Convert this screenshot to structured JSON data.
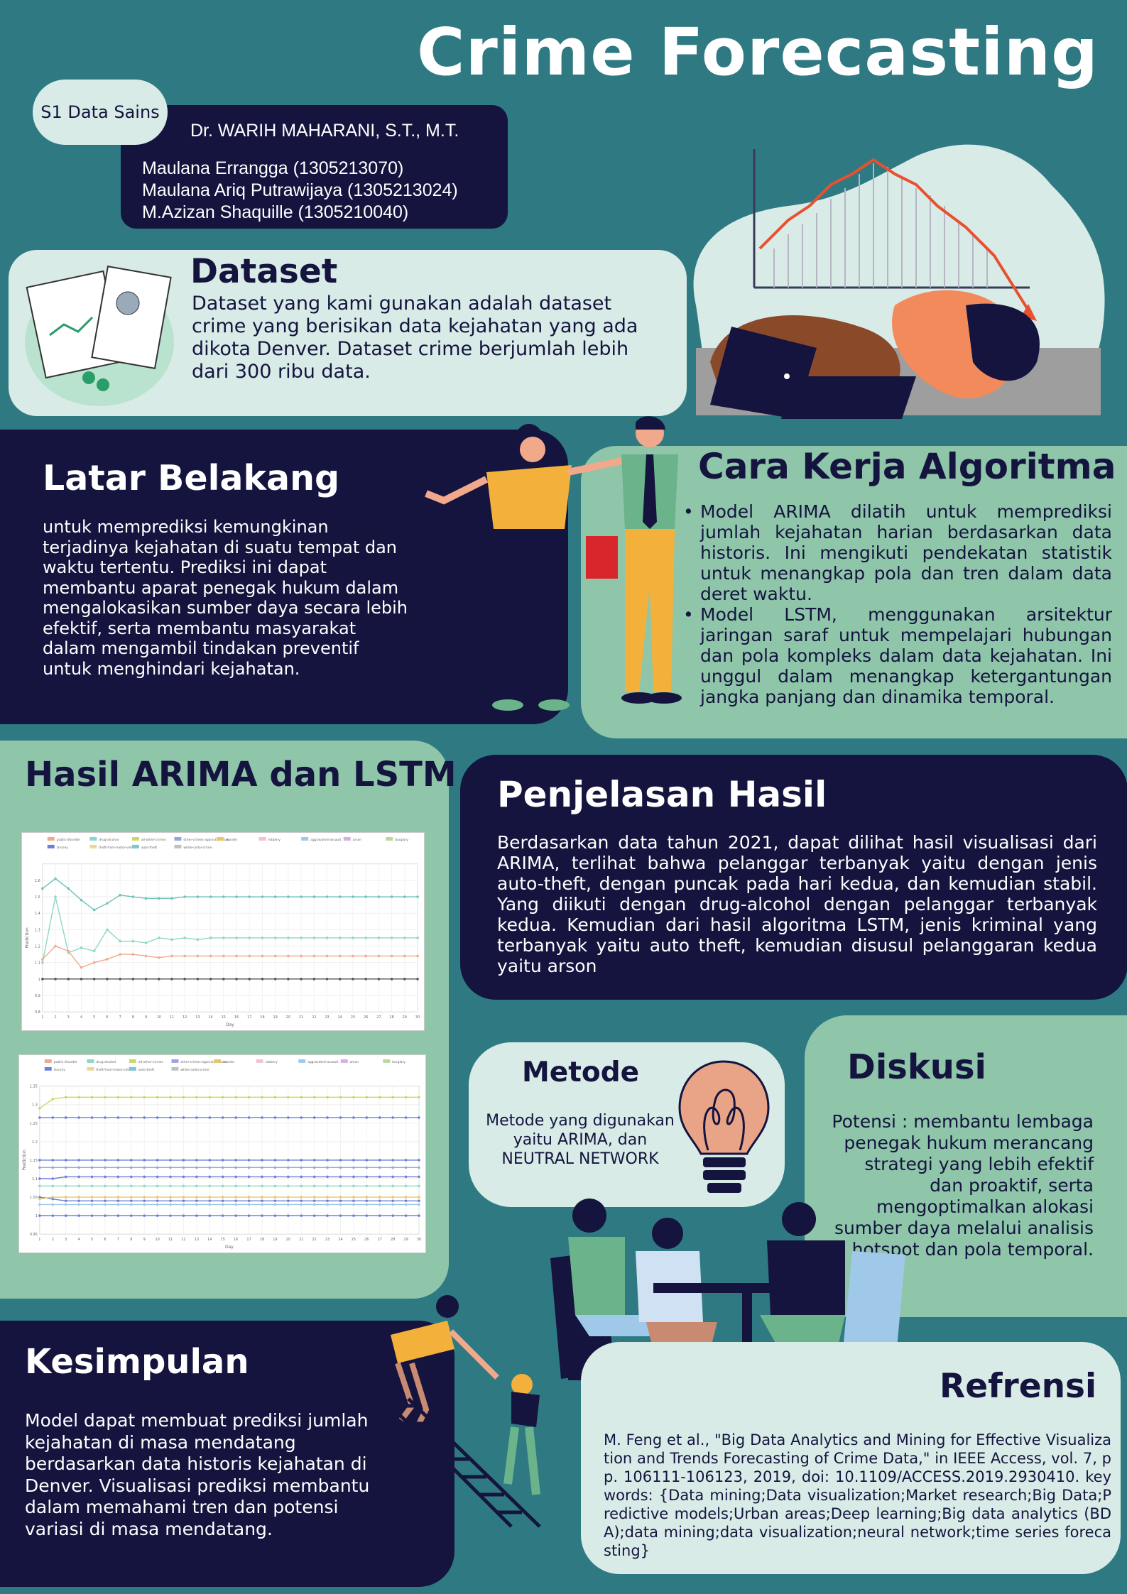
{
  "header": {
    "title": "Crime Forecasting",
    "program": "S1 Data Sains",
    "supervisor": "Dr. WARIH MAHARANI, S.T., M.T.",
    "members": [
      "Maulana Errangga (1305213070)",
      "Maulana Ariq Putrawijaya (1305213024)",
      "M.Azizan Shaquille (1305210040)"
    ]
  },
  "dataset": {
    "heading": "Dataset",
    "text": "Dataset yang kami gunakan adalah dataset crime yang berisikan data kejahatan yang ada dikota Denver. Dataset crime berjumlah lebih dari 300 ribu data."
  },
  "latar": {
    "heading": "Latar Belakang",
    "text": "untuk memprediksi kemungkinan terjadinya kejahatan di suatu tempat dan waktu tertentu. Prediksi ini dapat membantu aparat penegak hukum dalam mengalokasikan sumber daya secara lebih efektif, serta membantu masyarakat dalam mengambil tindakan preventif untuk menghindari kejahatan."
  },
  "cara": {
    "heading": "Cara Kerja Algoritma",
    "items": [
      "Model ARIMA dilatih untuk memprediksi jumlah kejahatan harian berdasarkan data historis. Ini mengikuti pendekatan statistik untuk menangkap pola dan tren dalam data deret waktu.",
      "Model LSTM, menggunakan arsitektur jaringan saraf untuk mempelajari hubungan dan pola kompleks dalam data kejahatan. Ini unggul dalam menangkap ketergantungan jangka panjang dan dinamika temporal."
    ]
  },
  "hasil": {
    "heading": "Hasil ARIMA dan LSTM"
  },
  "penjelasan": {
    "heading": "Penjelasan Hasil",
    "text": "Berdasarkan data tahun 2021, dapat dilihat hasil visualisasi dari ARIMA, terlihat bahwa pelanggar terbanyak yaitu dengan jenis auto-theft, dengan puncak pada hari kedua, dan kemudian stabil. Yang diikuti dengan drug-alcohol dengan pelanggar terbanyak kedua. Kemudian dari hasil algoritma LSTM, jenis kriminal yang terbanyak yaitu auto theft, kemudian disusul pelanggaran kedua yaitu arson"
  },
  "metode": {
    "heading": "Metode",
    "text": "Metode yang digunakan yaitu  ARIMA, dan NEUTRAL NETWORK"
  },
  "diskusi": {
    "heading": "Diskusi",
    "text": "Potensi : membantu lembaga penegak hukum merancang strategi yang lebih efektif dan proaktif, serta mengoptimalkan alokasi sumber daya melalui analisis hotspot dan pola temporal."
  },
  "kesimpulan": {
    "heading": "Kesimpulan",
    "text": "Model dapat membuat prediksi jumlah kejahatan di masa mendatang berdasarkan data historis kejahatan di Denver. Visualisasi prediksi membantu dalam memahami tren dan potensi variasi di masa mendatang."
  },
  "refrensi": {
    "heading": "Refrensi",
    "text": "M. Feng et al., \"Big Data Analytics and Mining for Effective Visualization and Trends Forecasting of Crime Data,\" in IEEE Access, vol. 7, pp. 106111-106123, 2019, doi: 10.1109/ACCESS.2019.2930410. keywords: {Data mining;Data visualization;Market research;Big Data;Predictive models;Urban areas;Deep learning;Big data analytics (BDA);data mining;data visualization;neural network;time series forecasting}"
  },
  "colors": {
    "background": "#2f7a82",
    "navy": "#14143f",
    "mint": "#d8ebe6",
    "green": "#8fc5a9"
  },
  "chart_data": [
    {
      "type": "line",
      "legend": [
        "public-disorder",
        "drug-alcohol",
        "all-other-crimes",
        "other-crimes-against-persons",
        "murder",
        "robbery",
        "aggravated-assault",
        "arson",
        "burglary",
        "larceny",
        "theft-from-motor-vehicle",
        "auto-theft",
        "white-collar-crime"
      ],
      "xlabel": "Day",
      "ylabel": "Prediction",
      "x": [
        1,
        2,
        3,
        4,
        5,
        6,
        7,
        8,
        9,
        10,
        11,
        12,
        13,
        14,
        15,
        16,
        17,
        18,
        19,
        20,
        21,
        22,
        23,
        24,
        25,
        26,
        27,
        28,
        29,
        30
      ],
      "ylim": [
        0.8,
        1.7
      ],
      "yticks": [
        0.8,
        0.9,
        1.0,
        1.1,
        1.2,
        1.3,
        1.4,
        1.5,
        1.6
      ],
      "series": [
        {
          "name": "auto-theft",
          "color": "#6cc3b8",
          "values": [
            1.55,
            1.61,
            1.55,
            1.48,
            1.42,
            1.46,
            1.51,
            1.5,
            1.49,
            1.49,
            1.49,
            1.5,
            1.5,
            1.5,
            1.5,
            1.5,
            1.5,
            1.5,
            1.5,
            1.5,
            1.5,
            1.5,
            1.5,
            1.5,
            1.5,
            1.5,
            1.5,
            1.5,
            1.5,
            1.5
          ]
        },
        {
          "name": "drug-alcohol",
          "color": "#8ed6c6",
          "values": [
            1.1,
            1.5,
            1.16,
            1.19,
            1.17,
            1.3,
            1.23,
            1.23,
            1.22,
            1.25,
            1.24,
            1.25,
            1.24,
            1.25,
            1.25,
            1.25,
            1.25,
            1.25,
            1.25,
            1.25,
            1.25,
            1.25,
            1.25,
            1.25,
            1.25,
            1.25,
            1.25,
            1.25,
            1.25,
            1.25
          ]
        },
        {
          "name": "public-disorder",
          "color": "#f0a98a",
          "values": [
            1.12,
            1.2,
            1.17,
            1.07,
            1.1,
            1.12,
            1.15,
            1.15,
            1.14,
            1.13,
            1.14,
            1.14,
            1.14,
            1.14,
            1.14,
            1.14,
            1.14,
            1.14,
            1.14,
            1.14,
            1.14,
            1.14,
            1.14,
            1.14,
            1.14,
            1.14,
            1.14,
            1.14,
            1.14,
            1.14
          ]
        },
        {
          "name": "larceny",
          "color": "#555555",
          "values": [
            1.0,
            1.0,
            1.0,
            1.0,
            1.0,
            1.0,
            1.0,
            1.0,
            1.0,
            1.0,
            1.0,
            1.0,
            1.0,
            1.0,
            1.0,
            1.0,
            1.0,
            1.0,
            1.0,
            1.0,
            1.0,
            1.0,
            1.0,
            1.0,
            1.0,
            1.0,
            1.0,
            1.0,
            1.0,
            1.0
          ]
        }
      ]
    },
    {
      "type": "line",
      "legend": [
        "public-disorder",
        "drug-alcohol",
        "all-other-crimes",
        "other-crimes-against-persons",
        "murder",
        "robbery",
        "aggravated-assault",
        "arson",
        "burglary",
        "larceny",
        "theft-from-motor-vehicle",
        "auto-theft",
        "white-collar-crime"
      ],
      "xlabel": "Day",
      "ylabel": "Prediction",
      "x": [
        1,
        2,
        3,
        4,
        5,
        6,
        7,
        8,
        9,
        10,
        11,
        12,
        13,
        14,
        15,
        16,
        17,
        18,
        19,
        20,
        21,
        22,
        23,
        24,
        25,
        26,
        27,
        28,
        29,
        30
      ],
      "ylim": [
        0.95,
        1.35
      ],
      "yticks": [
        0.95,
        1.0,
        1.05,
        1.1,
        1.15,
        1.2,
        1.25,
        1.3,
        1.35
      ],
      "series": [
        {
          "name": "auto-theft",
          "color": "#c8d96a",
          "values": [
            1.29,
            1.315,
            1.32,
            1.32,
            1.32,
            1.32,
            1.32,
            1.32,
            1.32,
            1.32,
            1.32,
            1.32,
            1.32,
            1.32,
            1.32,
            1.32,
            1.32,
            1.32,
            1.32,
            1.32,
            1.32,
            1.32,
            1.32,
            1.32,
            1.32,
            1.32,
            1.32,
            1.32,
            1.32,
            1.32
          ]
        },
        {
          "name": "arson",
          "color": "#6b7fd6",
          "values": [
            1.265,
            1.265,
            1.265,
            1.265,
            1.265,
            1.265,
            1.265,
            1.265,
            1.265,
            1.265,
            1.265,
            1.265,
            1.265,
            1.265,
            1.265,
            1.265,
            1.265,
            1.265,
            1.265,
            1.265,
            1.265,
            1.265,
            1.265,
            1.265,
            1.265,
            1.265,
            1.265,
            1.265,
            1.265,
            1.265
          ]
        },
        {
          "name": "robbery",
          "color": "#6b7fd6",
          "values": [
            1.15,
            1.15,
            1.15,
            1.15,
            1.15,
            1.15,
            1.15,
            1.15,
            1.15,
            1.15,
            1.15,
            1.15,
            1.15,
            1.15,
            1.15,
            1.15,
            1.15,
            1.15,
            1.15,
            1.15,
            1.15,
            1.15,
            1.15,
            1.15,
            1.15,
            1.15,
            1.15,
            1.15,
            1.15,
            1.15
          ]
        },
        {
          "name": "burglary",
          "color": "#9aa3e0",
          "values": [
            1.13,
            1.13,
            1.13,
            1.13,
            1.13,
            1.13,
            1.13,
            1.13,
            1.13,
            1.13,
            1.13,
            1.13,
            1.13,
            1.13,
            1.13,
            1.13,
            1.13,
            1.13,
            1.13,
            1.13,
            1.13,
            1.13,
            1.13,
            1.13,
            1.13,
            1.13,
            1.13,
            1.13,
            1.13,
            1.13
          ]
        },
        {
          "name": "drug-alcohol",
          "color": "#6b7fd6",
          "values": [
            1.1,
            1.1,
            1.105,
            1.105,
            1.105,
            1.105,
            1.105,
            1.105,
            1.105,
            1.105,
            1.105,
            1.105,
            1.105,
            1.105,
            1.105,
            1.105,
            1.105,
            1.105,
            1.105,
            1.105,
            1.105,
            1.105,
            1.105,
            1.105,
            1.105,
            1.105,
            1.105,
            1.105,
            1.105,
            1.105
          ]
        },
        {
          "name": "public-disorder",
          "color": "#8ed6c6",
          "values": [
            1.08,
            1.08,
            1.08,
            1.08,
            1.08,
            1.08,
            1.08,
            1.08,
            1.08,
            1.08,
            1.08,
            1.08,
            1.08,
            1.08,
            1.08,
            1.08,
            1.08,
            1.08,
            1.08,
            1.08,
            1.08,
            1.08,
            1.08,
            1.08,
            1.08,
            1.08,
            1.08,
            1.08,
            1.08,
            1.08
          ]
        },
        {
          "name": "all-other-crimes",
          "color": "#6b7fd6",
          "values": [
            1.05,
            1.045,
            1.04,
            1.04,
            1.04,
            1.04,
            1.04,
            1.04,
            1.04,
            1.04,
            1.04,
            1.04,
            1.04,
            1.04,
            1.04,
            1.04,
            1.04,
            1.04,
            1.04,
            1.04,
            1.04,
            1.04,
            1.04,
            1.04,
            1.04,
            1.04,
            1.04,
            1.04,
            1.04,
            1.04
          ]
        },
        {
          "name": "murder",
          "color": "#e6c76a",
          "values": [
            1.045,
            1.05,
            1.05,
            1.05,
            1.05,
            1.05,
            1.05,
            1.05,
            1.05,
            1.05,
            1.05,
            1.05,
            1.05,
            1.05,
            1.05,
            1.05,
            1.05,
            1.05,
            1.05,
            1.05,
            1.05,
            1.05,
            1.05,
            1.05,
            1.05,
            1.05,
            1.05,
            1.05,
            1.05,
            1.05
          ]
        },
        {
          "name": "aggravated-assault",
          "color": "#a0c8e8",
          "values": [
            1.03,
            1.03,
            1.03,
            1.03,
            1.03,
            1.03,
            1.03,
            1.03,
            1.03,
            1.03,
            1.03,
            1.03,
            1.03,
            1.03,
            1.03,
            1.03,
            1.03,
            1.03,
            1.03,
            1.03,
            1.03,
            1.03,
            1.03,
            1.03,
            1.03,
            1.03,
            1.03,
            1.03,
            1.03,
            1.03
          ]
        },
        {
          "name": "white-collar-crime",
          "color": "#6b7fd6",
          "values": [
            1.0,
            1.0,
            1.0,
            1.0,
            1.0,
            1.0,
            1.0,
            1.0,
            1.0,
            1.0,
            1.0,
            1.0,
            1.0,
            1.0,
            1.0,
            1.0,
            1.0,
            1.0,
            1.0,
            1.0,
            1.0,
            1.0,
            1.0,
            1.0,
            1.0,
            1.0,
            1.0,
            1.0,
            1.0,
            1.0
          ]
        }
      ]
    }
  ]
}
